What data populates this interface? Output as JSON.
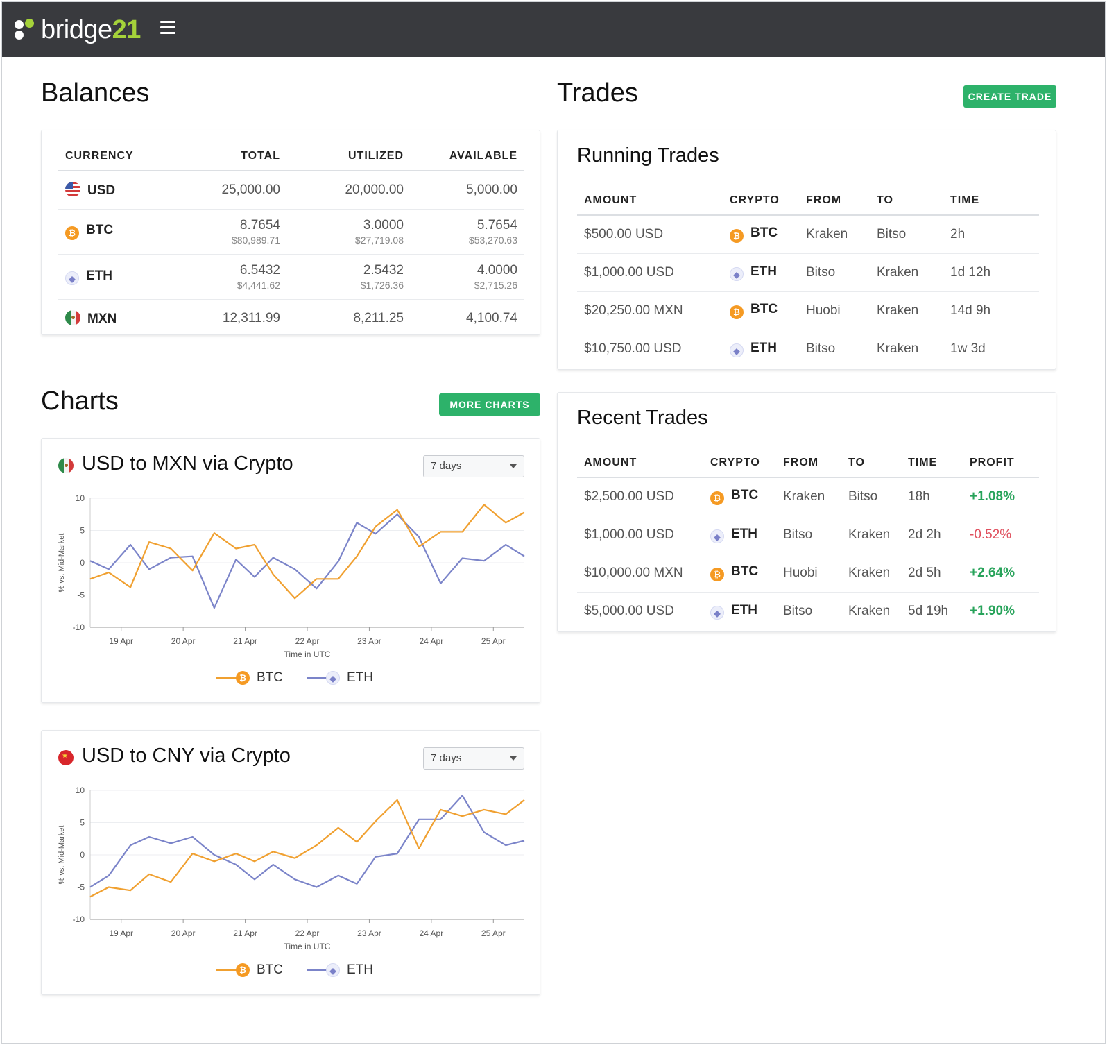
{
  "app": {
    "logo_text": "bridge",
    "logo_num": "21"
  },
  "balances": {
    "title": "Balances",
    "headers": [
      "CURRENCY",
      "TOTAL",
      "UTILIZED",
      "AVAILABLE"
    ],
    "rows": [
      {
        "currency": "USD",
        "total": "25,000.00",
        "total_sub": "",
        "utilized": "20,000.00",
        "utilized_sub": "",
        "available": "5,000.00",
        "available_sub": ""
      },
      {
        "currency": "BTC",
        "total": "8.7654",
        "total_sub": "$80,989.71",
        "utilized": "3.0000",
        "utilized_sub": "$27,719.08",
        "available": "5.7654",
        "available_sub": "$53,270.63"
      },
      {
        "currency": "ETH",
        "total": "6.5432",
        "total_sub": "$4,441.62",
        "utilized": "2.5432",
        "utilized_sub": "$1,726.36",
        "available": "4.0000",
        "available_sub": "$2,715.26"
      },
      {
        "currency": "MXN",
        "total": "12,311.99",
        "total_sub": "",
        "utilized": "8,211.25",
        "utilized_sub": "",
        "available": "4,100.74",
        "available_sub": ""
      }
    ]
  },
  "trades": {
    "title": "Trades",
    "create_label": "CREATE TRADE",
    "running": {
      "title": "Running Trades",
      "headers": [
        "AMOUNT",
        "CRYPTO",
        "FROM",
        "TO",
        "TIME"
      ],
      "rows": [
        {
          "amount": "$500.00 USD",
          "crypto": "BTC",
          "from": "Kraken",
          "to": "Bitso",
          "time": "2h"
        },
        {
          "amount": "$1,000.00 USD",
          "crypto": "ETH",
          "from": "Bitso",
          "to": "Kraken",
          "time": "1d 12h"
        },
        {
          "amount": "$20,250.00 MXN",
          "crypto": "BTC",
          "from": "Huobi",
          "to": "Kraken",
          "time": "14d 9h"
        },
        {
          "amount": "$10,750.00 USD",
          "crypto": "ETH",
          "from": "Bitso",
          "to": "Kraken",
          "time": "1w 3d"
        }
      ]
    },
    "recent": {
      "title": "Recent Trades",
      "headers": [
        "AMOUNT",
        "CRYPTO",
        "FROM",
        "TO",
        "TIME",
        "PROFIT"
      ],
      "rows": [
        {
          "amount": "$2,500.00 USD",
          "crypto": "BTC",
          "from": "Kraken",
          "to": "Bitso",
          "time": "18h",
          "profit": "+1.08%"
        },
        {
          "amount": "$1,000.00 USD",
          "crypto": "ETH",
          "from": "Bitso",
          "to": "Kraken",
          "time": "2d 2h",
          "profit": "-0.52%"
        },
        {
          "amount": "$10,000.00 MXN",
          "crypto": "BTC",
          "from": "Huobi",
          "to": "Kraken",
          "time": "2d 5h",
          "profit": "+2.64%"
        },
        {
          "amount": "$5,000.00 USD",
          "crypto": "ETH",
          "from": "Bitso",
          "to": "Kraken",
          "time": "5d 19h",
          "profit": "+1.90%"
        }
      ]
    }
  },
  "charts": {
    "title": "Charts",
    "more_label": "MORE CHARTS",
    "range_label": "7 days",
    "colors": {
      "btc": "#f0a030",
      "eth": "#7b84c9"
    }
  },
  "chart_data": [
    {
      "type": "line",
      "title": "USD to MXN via Crypto",
      "xlabel": "Time in UTC",
      "ylabel": "% vs. Mid-Market",
      "ylim": [
        -10,
        10
      ],
      "yticks": [
        10,
        5,
        0,
        -5,
        -10
      ],
      "xtick_labels": [
        "19 Apr",
        "20 Apr",
        "21 Apr",
        "22 Apr",
        "23 Apr",
        "24 Apr",
        "25 Apr"
      ],
      "x": [
        18.5,
        18.8,
        19.15,
        19.45,
        19.8,
        20.15,
        20.5,
        20.85,
        21.15,
        21.45,
        21.8,
        22.15,
        22.5,
        22.8,
        23.1,
        23.45,
        23.8,
        24.15,
        24.5,
        24.85,
        25.2,
        25.5
      ],
      "series": [
        {
          "name": "BTC",
          "values": [
            -2.5,
            -1.5,
            -3.8,
            3.2,
            2.2,
            -1.2,
            4.6,
            2.2,
            2.8,
            -1.8,
            -5.5,
            -2.5,
            -2.5,
            1.0,
            5.6,
            8.2,
            2.5,
            4.8,
            4.8,
            9.0,
            6.2,
            7.8
          ]
        },
        {
          "name": "ETH",
          "values": [
            0.3,
            -1.0,
            2.8,
            -1.0,
            0.8,
            1.0,
            -7.0,
            0.5,
            -2.2,
            0.8,
            -1.0,
            -4.0,
            0.2,
            6.2,
            4.5,
            7.5,
            4.0,
            -3.2,
            0.7,
            0.3,
            2.8,
            1.0
          ]
        }
      ]
    },
    {
      "type": "line",
      "title": "USD to CNY via Crypto",
      "xlabel": "Time in UTC",
      "ylabel": "% vs. Mid-Market",
      "ylim": [
        -10,
        10
      ],
      "yticks": [
        10,
        5,
        0,
        -5,
        -10
      ],
      "xtick_labels": [
        "19 Apr",
        "20 Apr",
        "21 Apr",
        "22 Apr",
        "23 Apr",
        "24 Apr",
        "25 Apr"
      ],
      "x": [
        18.5,
        18.8,
        19.15,
        19.45,
        19.8,
        20.15,
        20.5,
        20.85,
        21.15,
        21.45,
        21.8,
        22.15,
        22.5,
        22.8,
        23.1,
        23.45,
        23.8,
        24.15,
        24.5,
        24.85,
        25.2,
        25.5
      ],
      "series": [
        {
          "name": "BTC",
          "values": [
            -6.5,
            -5.0,
            -5.5,
            -3.0,
            -4.2,
            0.2,
            -1.0,
            0.2,
            -1.0,
            0.5,
            -0.5,
            1.5,
            4.2,
            2.0,
            5.2,
            8.5,
            1.0,
            7.0,
            6.0,
            7.0,
            6.3,
            8.5
          ]
        },
        {
          "name": "ETH",
          "values": [
            -5.0,
            -3.2,
            1.5,
            2.8,
            1.8,
            2.8,
            0.0,
            -1.5,
            -3.8,
            -1.5,
            -3.8,
            -5.0,
            -3.2,
            -4.5,
            -0.3,
            0.2,
            5.5,
            5.5,
            9.2,
            3.5,
            1.5,
            2.2
          ]
        }
      ]
    }
  ]
}
